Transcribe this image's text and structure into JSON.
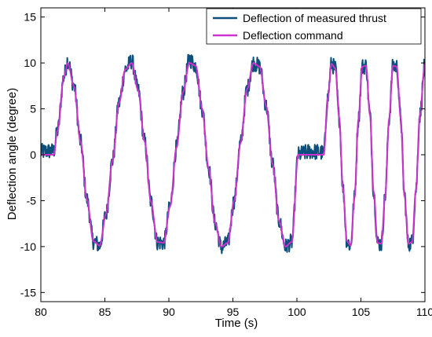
{
  "chart_data": {
    "type": "line",
    "xlabel": "Time (s)",
    "ylabel": "Deflection angle (degree)",
    "xlim": [
      80,
      110
    ],
    "ylim": [
      -16,
      16
    ],
    "xticks": [
      80,
      85,
      90,
      95,
      100,
      105,
      110
    ],
    "yticks": [
      -15,
      -10,
      -5,
      0,
      5,
      10,
      15
    ],
    "grid": false,
    "legend_position": "top-right",
    "series": [
      {
        "name": "Deflection of measured thrust",
        "color": "#0b4f7c",
        "style": "noisy",
        "x": [
          80.0,
          80.5,
          81.0,
          81.3,
          81.8,
          82.1,
          82.6,
          83.1,
          83.6,
          84.1,
          84.6,
          85.1,
          85.6,
          86.1,
          86.6,
          87.1,
          87.6,
          88.1,
          88.6,
          89.1,
          89.6,
          90.1,
          90.6,
          91.1,
          91.6,
          92.1,
          92.6,
          93.1,
          93.6,
          94.1,
          94.6,
          95.1,
          95.6,
          96.1,
          96.6,
          97.1,
          97.6,
          98.1,
          98.6,
          99.1,
          99.6,
          100.1,
          100.6,
          101.1,
          101.6,
          102.1,
          102.4,
          102.7,
          103.0,
          103.3,
          103.6,
          103.9,
          104.2,
          104.5,
          104.8,
          105.1,
          105.4,
          105.7,
          106.0,
          106.3,
          106.6,
          106.9,
          107.2,
          107.5,
          107.8,
          108.1,
          108.4,
          108.7,
          109.0,
          109.3,
          109.6,
          110.0
        ],
        "y": [
          0.3,
          0.4,
          0.4,
          2.6,
          8.5,
          10.3,
          7.4,
          1.4,
          -4.9,
          -9.4,
          -9.9,
          -6.4,
          -0.6,
          5.6,
          9.3,
          10.2,
          7.0,
          1.5,
          -5.1,
          -9.5,
          -9.6,
          -5.6,
          0.8,
          6.8,
          10.4,
          9.7,
          5.0,
          -1.4,
          -7.4,
          -10.1,
          -9.6,
          -5.0,
          1.3,
          7.1,
          10.0,
          9.6,
          5.3,
          -1.0,
          -7.2,
          -10.0,
          -9.5,
          0.0,
          0.2,
          0.4,
          0.3,
          0.2,
          6.1,
          9.9,
          9.4,
          4.1,
          -3.7,
          -9.4,
          -9.9,
          -4.7,
          3.8,
          9.6,
          9.7,
          4.4,
          -4.1,
          -9.6,
          -9.7,
          -4.4,
          3.9,
          9.7,
          9.6,
          4.1,
          -4.4,
          -9.7,
          -9.5,
          -3.8,
          4.3,
          9.9
        ]
      },
      {
        "name": "Deflection command",
        "color": "#cc33cc",
        "style": "smooth",
        "x": [
          80.0,
          80.5,
          81.0,
          81.3,
          81.8,
          82.1,
          82.6,
          83.1,
          83.6,
          84.1,
          84.6,
          85.1,
          85.6,
          86.1,
          86.6,
          87.1,
          87.6,
          88.1,
          88.6,
          89.1,
          89.6,
          90.1,
          90.6,
          91.1,
          91.6,
          92.1,
          92.6,
          93.1,
          93.6,
          94.1,
          94.6,
          95.1,
          95.6,
          96.1,
          96.6,
          97.1,
          97.6,
          98.1,
          98.6,
          99.1,
          99.6,
          100.1,
          100.6,
          101.1,
          101.6,
          102.1,
          102.4,
          102.7,
          103.0,
          103.3,
          103.6,
          103.9,
          104.2,
          104.5,
          104.8,
          105.1,
          105.4,
          105.7,
          106.0,
          106.3,
          106.6,
          106.9,
          107.2,
          107.5,
          107.8,
          108.1,
          108.4,
          108.7,
          109.0,
          109.3,
          109.6,
          110.0
        ],
        "y": [
          0.0,
          0.0,
          0.0,
          2.6,
          8.5,
          10.0,
          7.4,
          1.4,
          -4.9,
          -9.4,
          -9.9,
          -6.4,
          -0.6,
          5.6,
          9.3,
          10.0,
          7.0,
          1.5,
          -5.1,
          -9.5,
          -9.6,
          -5.6,
          0.8,
          6.8,
          10.0,
          9.7,
          5.0,
          -1.4,
          -7.4,
          -10.0,
          -9.6,
          -5.0,
          1.3,
          7.1,
          10.0,
          9.6,
          5.3,
          -1.0,
          -7.2,
          -10.0,
          -9.5,
          0.0,
          0.0,
          0.0,
          0.0,
          0.0,
          6.1,
          9.9,
          9.4,
          4.1,
          -3.7,
          -9.4,
          -9.9,
          -4.7,
          3.8,
          9.6,
          9.7,
          4.4,
          -4.1,
          -9.6,
          -9.7,
          -4.4,
          3.9,
          9.7,
          9.6,
          4.1,
          -4.4,
          -9.7,
          -9.5,
          -3.8,
          4.3,
          9.9
        ]
      }
    ]
  }
}
